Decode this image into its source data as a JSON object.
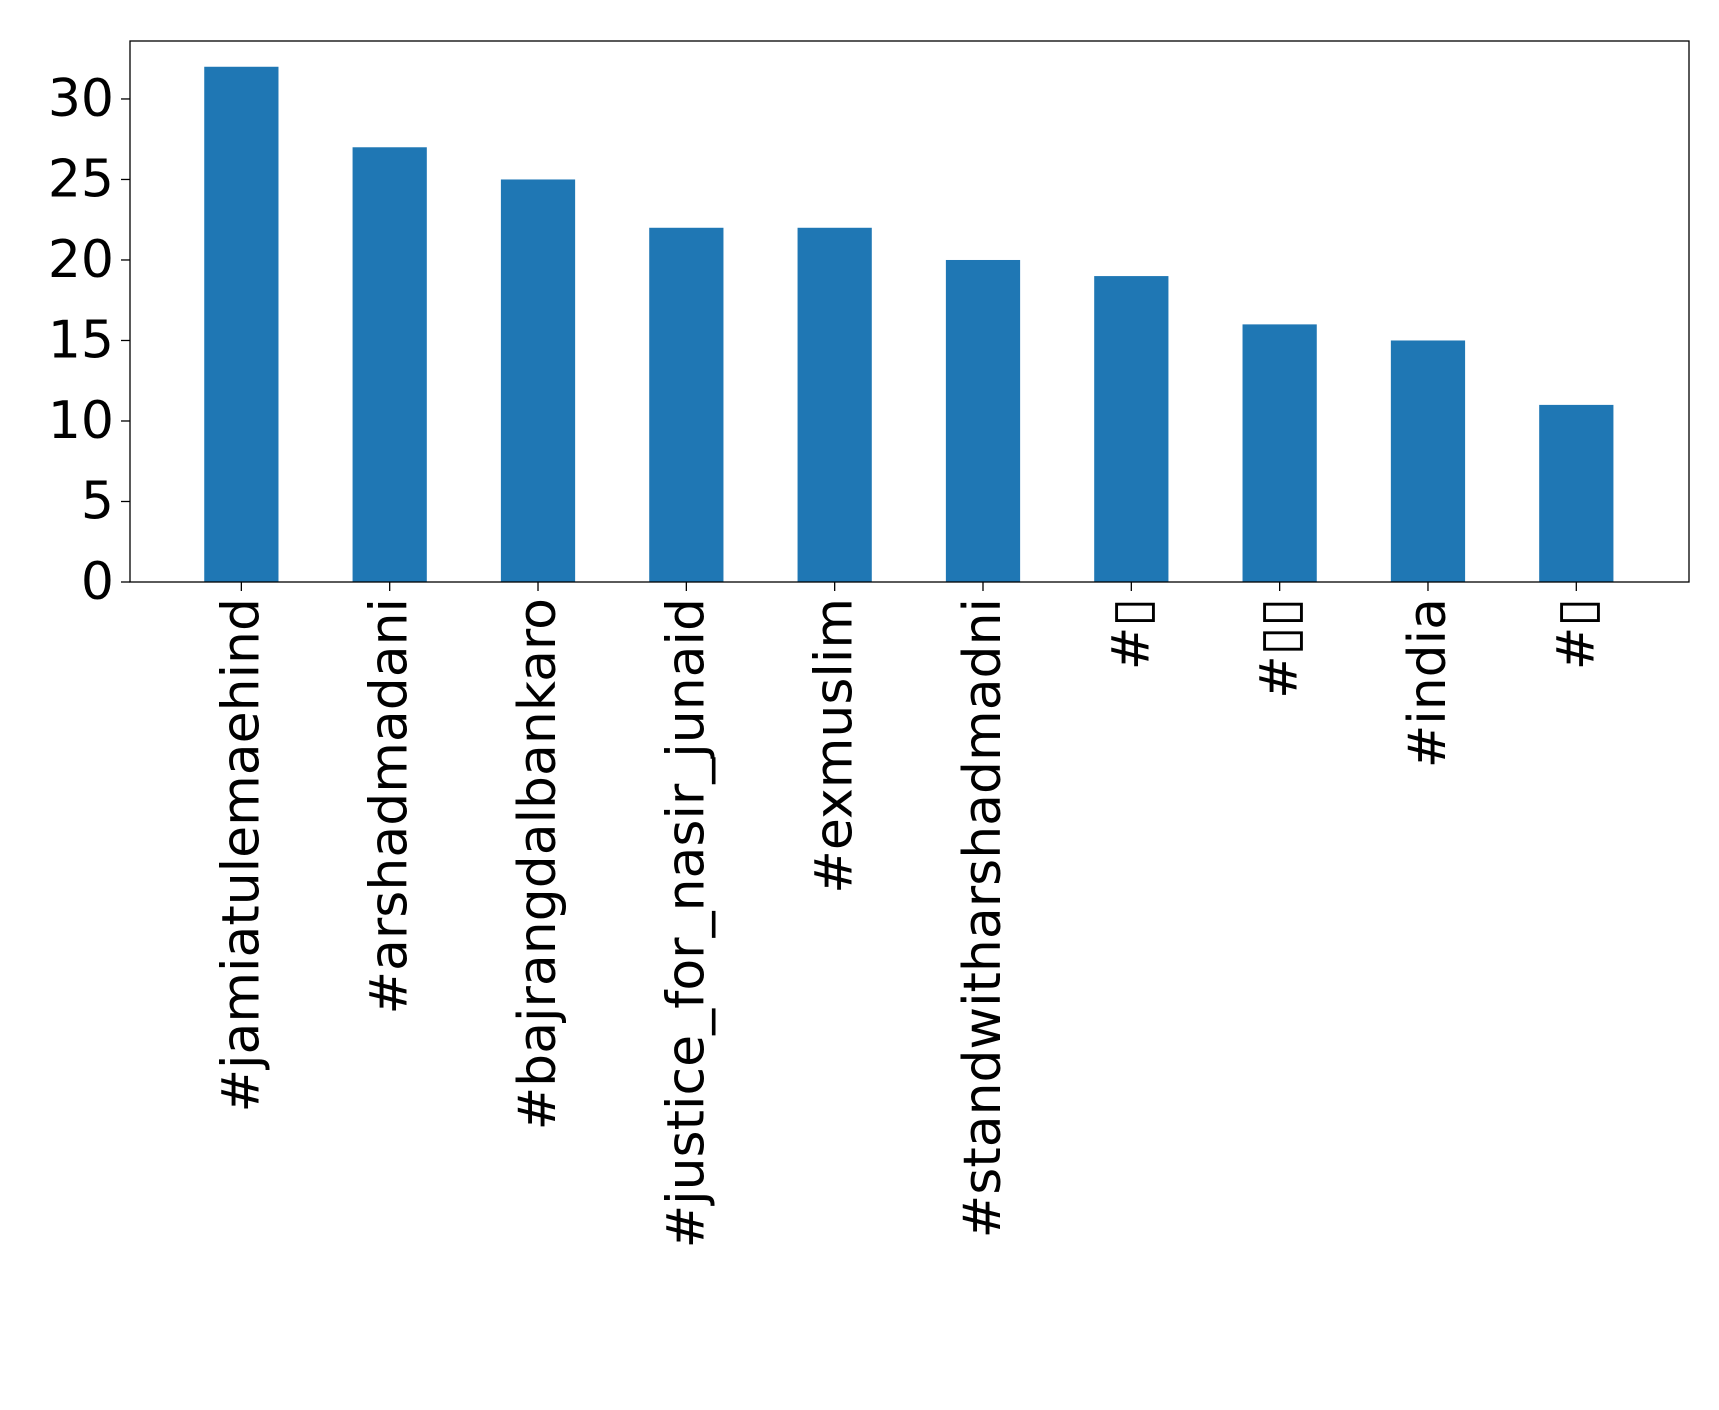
{
  "chart_data": {
    "type": "bar",
    "title": "",
    "xlabel": "",
    "ylabel": "",
    "categories": [
      "#jamiatulemaehind",
      "#arshadmadani",
      "#bajrangdalbankaro",
      "#justice_for_nasir_junaid",
      "#exmuslim",
      "#standwitharshadmadni",
      "#▯",
      "#▯▯",
      "#india",
      "#▯"
    ],
    "values": [
      32,
      27,
      25,
      22,
      22,
      20,
      19,
      16,
      15,
      11
    ],
    "ylim": [
      0,
      33.6
    ],
    "yticks": [
      0,
      5,
      10,
      15,
      20,
      25,
      30
    ],
    "grid": false,
    "legend": "none",
    "bar_color": "#1f77b4",
    "axis_color": "#000000"
  }
}
